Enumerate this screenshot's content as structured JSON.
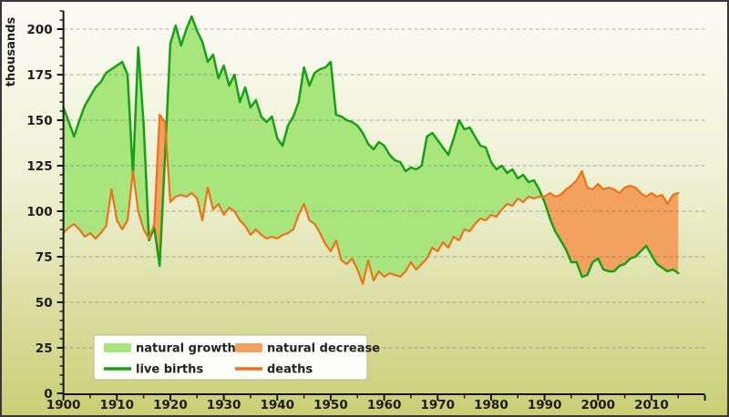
{
  "chart_data": {
    "type": "area",
    "ylabel": "thousands",
    "x_axis": {
      "start_year": 1900,
      "data_end_year": 2015,
      "axis_end_year": 2020,
      "major_tick_step": 10,
      "minor_tick_step": 5,
      "tick_labels": [
        "1900",
        "1910",
        "1920",
        "1930",
        "1940",
        "1950",
        "1960",
        "1970",
        "1980",
        "1990",
        "2000",
        "2010"
      ]
    },
    "y_axis": {
      "min": 0,
      "axis_max": 210,
      "major_step": 25,
      "minor_step": 5,
      "tick_labels": [
        "0",
        "25",
        "50",
        "75",
        "100",
        "125",
        "150",
        "175",
        "200"
      ],
      "grid": "horizontal-dashed"
    },
    "years_start": 1900,
    "series": [
      {
        "name": "live births",
        "color": "#17a017",
        "values": [
          157,
          149,
          141,
          150,
          158,
          163,
          168,
          171,
          176,
          178,
          180,
          182,
          175,
          120,
          190,
          148,
          84,
          91,
          70,
          130,
          192,
          202,
          191,
          200,
          207,
          199,
          193,
          182,
          186,
          173,
          180,
          169,
          175,
          160,
          168,
          157,
          161,
          152,
          149,
          152,
          140,
          136,
          147,
          152,
          160,
          179,
          169,
          176,
          178,
          179,
          182,
          153,
          152,
          150,
          149,
          147,
          143,
          137,
          134,
          138,
          136,
          131,
          128,
          127,
          122,
          124,
          123,
          125,
          141,
          143,
          139,
          135,
          131,
          140,
          150,
          145,
          146,
          141,
          136,
          135,
          127,
          123,
          125,
          121,
          123,
          118,
          120,
          116,
          117,
          112,
          105,
          96,
          89,
          84,
          79,
          72,
          72,
          64,
          65,
          72,
          74,
          68,
          67,
          67,
          70,
          71,
          74,
          75,
          78,
          81,
          76,
          71,
          69,
          67,
          68,
          66
        ]
      },
      {
        "name": "deaths",
        "color": "#ee7118",
        "values": [
          88,
          91,
          93,
          90,
          86,
          88,
          85,
          88,
          92,
          112,
          95,
          90,
          95,
          122,
          100,
          90,
          85,
          93,
          153,
          149,
          105,
          108,
          109,
          108,
          110,
          107,
          95,
          113,
          101,
          104,
          98,
          102,
          100,
          95,
          92,
          87,
          90,
          87,
          85,
          86,
          85,
          87,
          88,
          90,
          98,
          104,
          95,
          93,
          88,
          82,
          78,
          84,
          73,
          71,
          74,
          68,
          60,
          73,
          62,
          67,
          64,
          66,
          65,
          64,
          67,
          72,
          68,
          71,
          74,
          80,
          78,
          83,
          80,
          86,
          84,
          90,
          89,
          93,
          96,
          95,
          98,
          97,
          101,
          104,
          103,
          107,
          105,
          108,
          107,
          108,
          108,
          110,
          108,
          109,
          112,
          114,
          117,
          122,
          113,
          112,
          115,
          112,
          113,
          112,
          110,
          113,
          114,
          113,
          110,
          108,
          110,
          108,
          109,
          104,
          109,
          110
        ]
      }
    ],
    "areas": [
      {
        "name": "natural growth",
        "color": "#a9e57d",
        "condition": "live births > deaths"
      },
      {
        "name": "natural decrease",
        "color": "#f2a15f",
        "condition": "deaths > live births"
      }
    ],
    "legend": {
      "position": "bottom-left",
      "items": [
        {
          "label": "natural growth",
          "swatch": "area",
          "color": "#a9e57d"
        },
        {
          "label": "natural decrease",
          "swatch": "area",
          "color": "#f2a15f"
        },
        {
          "label": "live births",
          "swatch": "line",
          "color": "#17a017"
        },
        {
          "label": "deaths",
          "swatch": "line",
          "color": "#ee7118"
        }
      ]
    }
  },
  "style": {
    "background_top": "#fcfcf6",
    "background_bottom": "#c9ce74",
    "grid_color": "#6f6f6f",
    "axis_color": "#151515",
    "text_color": "#1c1c1c",
    "legend_bg": "#fdfdf9",
    "legend_border": "#b5b5a0",
    "frame_color": "#383838"
  }
}
